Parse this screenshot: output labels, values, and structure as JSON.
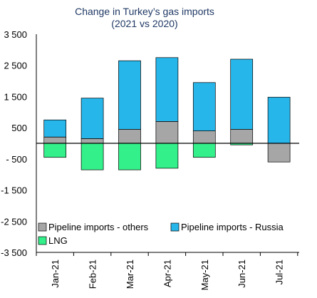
{
  "chart_data": {
    "type": "bar",
    "stacked": true,
    "title": "Change in Turkey’s gas imports",
    "subtitle": "(2021 vs 2020)",
    "categories": [
      "Jan-21",
      "Feb-21",
      "Mar-21",
      "Apr-21",
      "May-21",
      "Jun-21",
      "Jul-21"
    ],
    "series": [
      {
        "name": "Pipeline imports - others",
        "color": "#a6a6a6",
        "values": [
          200,
          150,
          450,
          700,
          400,
          450,
          -600
        ]
      },
      {
        "name": "Pipeline imports - Russia",
        "color": "#27b6ea",
        "values": [
          550,
          1300,
          2200,
          2050,
          1550,
          2250,
          1480
        ]
      },
      {
        "name": "LNG",
        "color": "#33f08a",
        "values": [
          -450,
          -850,
          -850,
          -800,
          -450,
          -50,
          0
        ]
      }
    ],
    "y_ticks": [
      "3 500",
      "2 500",
      "1 500",
      "500",
      "- 500",
      "-1 500",
      "-2 500",
      "-3 500"
    ],
    "y_tick_values": [
      3500,
      2500,
      1500,
      500,
      -500,
      -1500,
      -2500,
      -3500
    ],
    "ylim": [
      -3500,
      3500
    ],
    "grid": false,
    "legend_placement": "bottom inside plot"
  }
}
